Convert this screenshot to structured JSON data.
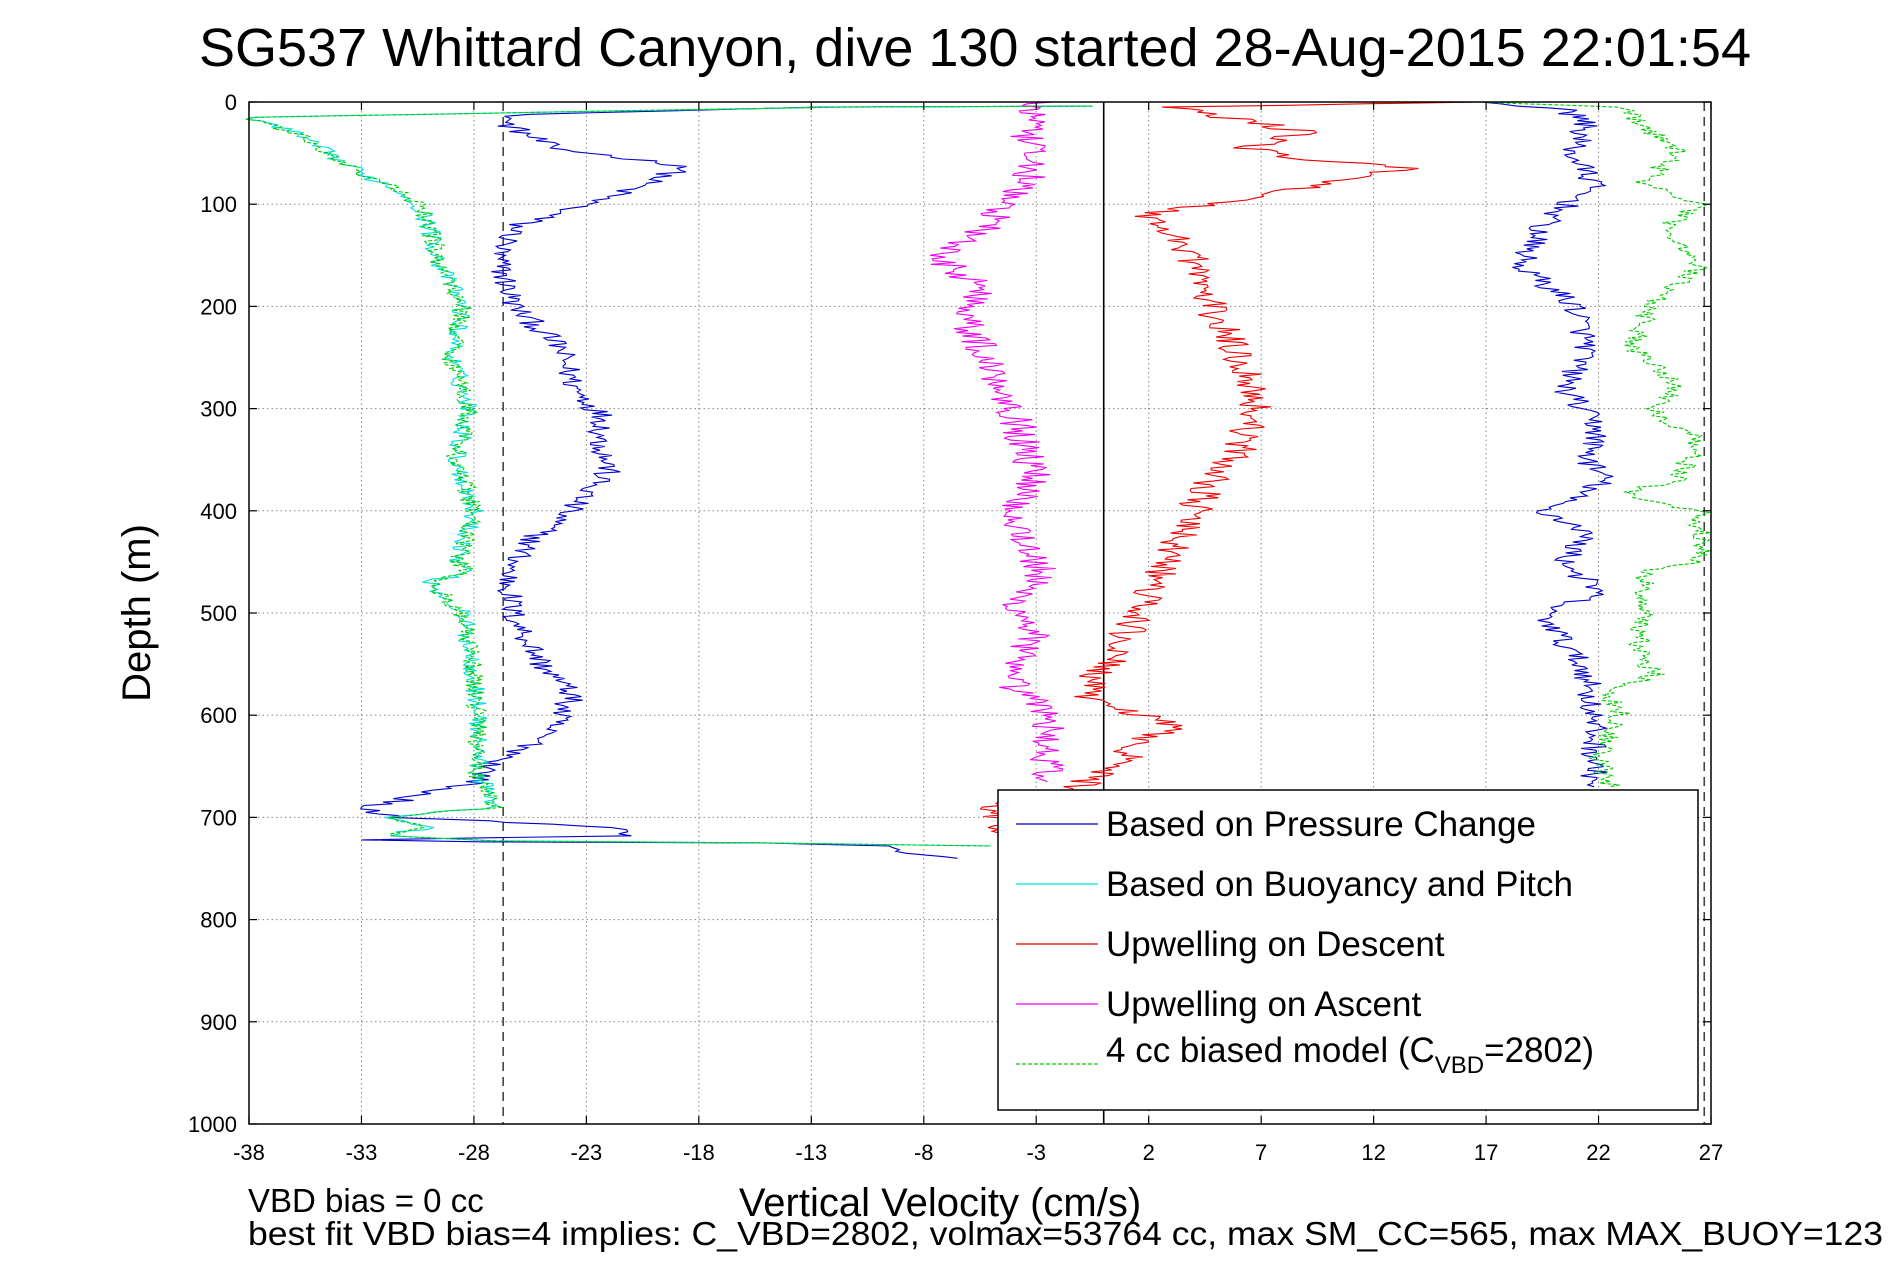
{
  "chart_data": {
    "type": "line",
    "title": "SG537 Whittard Canyon, dive 130 started 28-Aug-2015 22:01:54",
    "xlabel": "Vertical Velocity (cm/s)",
    "ylabel": "Depth (m)",
    "xlim": [
      -38,
      27
    ],
    "ylim": [
      1000,
      0
    ],
    "y_reversed": true,
    "grid": true,
    "legend_placement": "lower-right",
    "x_ticks": [
      -38,
      -33,
      -28,
      -23,
      -18,
      -13,
      -8,
      -3,
      2,
      7,
      12,
      17,
      22,
      27
    ],
    "y_ticks": [
      0,
      100,
      200,
      300,
      400,
      500,
      600,
      700,
      800,
      900,
      1000
    ],
    "vertical_lines": [
      {
        "x": -26.7,
        "style": "dashed",
        "color": "#444444"
      },
      {
        "x": 0,
        "style": "solid",
        "color": "#000000"
      },
      {
        "x": 26.7,
        "style": "dashed",
        "color": "#444444"
      }
    ],
    "legend": {
      "entries": [
        {
          "label": "Based on Pressure Change",
          "color": "#0000cc",
          "dash": "solid"
        },
        {
          "label": "Based on Buoyancy and Pitch",
          "color": "#00dddd",
          "dash": "solid"
        },
        {
          "label": "Upwelling on Descent",
          "color": "#ee0000",
          "dash": "solid"
        },
        {
          "label": "Upwelling on Ascent",
          "color": "#ee00ee",
          "dash": "solid"
        },
        {
          "label_prefix": "4 cc biased model (C",
          "label_sub": "VBD",
          "label_suffix": "=2802)",
          "color": "#00cc00",
          "dash": "dashed"
        }
      ]
    },
    "series": [
      {
        "name": "Based on Pressure Change",
        "color": "#0000cc",
        "noise": 0.6,
        "x": [
          -0.5,
          -12,
          -26,
          -26.7,
          -24.5,
          -18.5,
          -21,
          -23,
          -26,
          -27,
          -26.2,
          -24.2,
          -23.5,
          -22.2,
          -22.4,
          -22,
          -23.8,
          -25.5,
          -26.5,
          -26.3,
          -25,
          -23.6,
          -24.5,
          -25.5,
          -27.3,
          -27.8,
          -30,
          -31.5,
          -33.5,
          -31.2,
          -26,
          -21.8,
          -21,
          -27.5,
          -33,
          -27.5,
          -15,
          -10,
          -8.5,
          -6.5
        ],
        "y": [
          4,
          5,
          12,
          20,
          45,
          63,
          85,
          100,
          120,
          150,
          200,
          240,
          280,
          310,
          330,
          360,
          400,
          430,
          460,
          500,
          550,
          580,
          610,
          630,
          650,
          665,
          675,
          685,
          690,
          700,
          705,
          710,
          718,
          720,
          722,
          724,
          725,
          728,
          735,
          740
        ]
      },
      {
        "name": "Based on Pressure Change",
        "color": "#0000cc",
        "noise": 0.6,
        "x": [
          17,
          20.5,
          21.5,
          20.8,
          21.8,
          19.5,
          18.5,
          21,
          21.5,
          20.5,
          22,
          21.5,
          22.3,
          21.5,
          19.5,
          21.5,
          20.5,
          22,
          19.5,
          21.5,
          21.8,
          21.8
        ],
        "y": [
          0,
          8,
          20,
          50,
          80,
          120,
          160,
          200,
          240,
          280,
          320,
          350,
          370,
          380,
          400,
          420,
          450,
          480,
          500,
          560,
          620,
          670
        ]
      },
      {
        "name": "Based on Buoyancy and Pitch",
        "color": "#00dddd",
        "noise": 0.45,
        "x": [
          -0.5,
          -12,
          -38,
          -36,
          -34.5,
          -33,
          -31.5,
          -30.5,
          -30,
          -29.5,
          -28.5,
          -29,
          -28.2,
          -28.8,
          -28,
          -28.7,
          -28.2,
          -30,
          -28.5,
          -28,
          -27.8,
          -27.8,
          -27,
          -32,
          -30,
          -32,
          -27,
          -15,
          -5
        ],
        "y": [
          4,
          5,
          15,
          30,
          50,
          70,
          85,
          100,
          120,
          160,
          200,
          250,
          300,
          350,
          400,
          450,
          460,
          470,
          500,
          560,
          610,
          660,
          690,
          700,
          710,
          718,
          723,
          725,
          728
        ]
      },
      {
        "name": "Upwelling on Descent",
        "color": "#ee0000",
        "noise": 0.8,
        "x": [
          16.5,
          3,
          5.5,
          9,
          6.5,
          8.5,
          13.5,
          10,
          2,
          4,
          4.5,
          5.5,
          6.5,
          6.8,
          6,
          4.5,
          3.5,
          2.5,
          1.5,
          0.5,
          -1,
          3,
          1.5,
          0.5,
          -1.2,
          -5,
          -4.5,
          -3.5
        ],
        "y": [
          0,
          5,
          15,
          30,
          45,
          55,
          65,
          80,
          110,
          150,
          190,
          230,
          270,
          300,
          340,
          380,
          420,
          460,
          500,
          540,
          580,
          610,
          630,
          650,
          670,
          690,
          710,
          740
        ]
      },
      {
        "name": "Upwelling on Ascent",
        "color": "#ee00ee",
        "noise": 0.8,
        "x": [
          -3,
          -3.5,
          -3.2,
          -4.5,
          -5,
          -7.5,
          -5.5,
          -6,
          -5,
          -4,
          -3.5,
          -3,
          -4,
          -3.5,
          -2.8,
          -4,
          -3,
          -4.5,
          -3.5,
          -2.5,
          -2.5,
          -2.5
        ],
        "y": [
          0,
          30,
          70,
          100,
          120,
          150,
          180,
          220,
          260,
          300,
          340,
          370,
          400,
          430,
          460,
          490,
          520,
          560,
          580,
          600,
          640,
          665
        ]
      },
      {
        "name": "4 cc biased model (C_VBD=2802)",
        "color": "#00cc00",
        "dashed": true,
        "noise": 0.45,
        "x": [
          -0.5,
          -12,
          -38,
          -36,
          -34.5,
          -33,
          -31.5,
          -30.5,
          -30,
          -29.5,
          -28.5,
          -29,
          -28.2,
          -28.8,
          -28,
          -28.7,
          -28.2,
          -30,
          -28.5,
          -28,
          -27.8,
          -27.8,
          -27,
          -32,
          -30,
          -32,
          -27,
          -15,
          -5
        ],
        "y": [
          4,
          5,
          15,
          30,
          50,
          70,
          85,
          100,
          120,
          160,
          200,
          250,
          300,
          350,
          400,
          450,
          460,
          470,
          500,
          560,
          610,
          660,
          690,
          700,
          710,
          718,
          723,
          725,
          728
        ]
      },
      {
        "name": "4 cc biased model (C_VBD=2802)",
        "color": "#00cc00",
        "dashed": true,
        "noise": 0.5,
        "x": [
          17,
          23,
          23.8,
          25.5,
          24,
          26.5,
          25,
          26.5,
          24.3,
          23.5,
          24.8,
          25.5,
          24.3,
          26.5,
          26,
          25.5,
          23.5,
          24,
          26.5,
          26.5,
          24,
          24,
          23.8,
          24.5,
          22.5,
          23,
          22,
          22.5
        ],
        "y": [
          0,
          5,
          20,
          50,
          80,
          100,
          120,
          160,
          200,
          240,
          260,
          280,
          300,
          330,
          350,
          370,
          380,
          390,
          400,
          450,
          460,
          500,
          540,
          560,
          580,
          600,
          640,
          670
        ]
      }
    ]
  },
  "footer": {
    "line1": "VBD bias = 0 cc",
    "line2": "best fit VBD bias=4 implies: C_VBD=2802, volmax=53764 cc, max SM_CC=565, max MAX_BUOY=123"
  }
}
